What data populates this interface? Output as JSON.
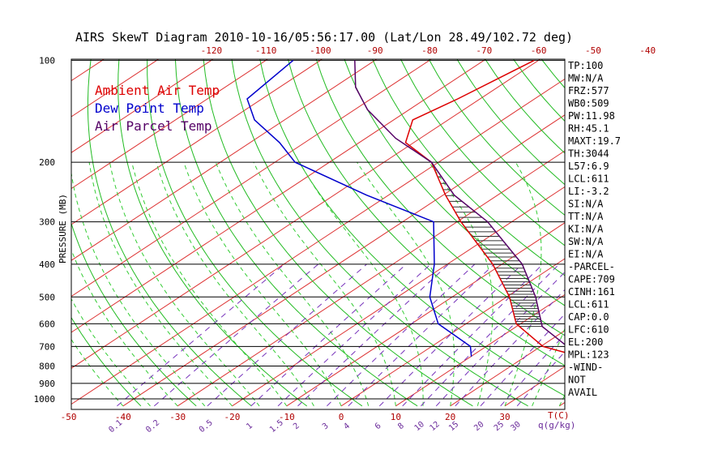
{
  "chart_data": {
    "type": "line",
    "title": "AIRS SkewT Diagram 2010-10-16/05:56:17.00 (Lat/Lon 28.49/102.72 deg)",
    "ylabel": "PRESSURE (MB)",
    "x_unit_label": "T(C)",
    "mix_unit_label": "q(g/kg)",
    "pressure_ticks": [
      100,
      200,
      300,
      400,
      500,
      600,
      700,
      800,
      900,
      1000
    ],
    "pressure_tick_labels": [
      "100",
      "200",
      "300",
      "400",
      "500",
      "600",
      "700",
      "800",
      "900",
      "1000"
    ],
    "bottom_temp_ticks": [
      -50,
      -40,
      -30,
      -20,
      -10,
      0,
      10,
      20,
      30
    ],
    "bottom_temp_labels": [
      "-50",
      "-40",
      "-30",
      "-20",
      "-10",
      "0",
      "10",
      "20",
      "30"
    ],
    "top_temp_ticks": [
      -120,
      -110,
      -100,
      -90,
      -80,
      -70,
      -60,
      -50,
      -40
    ],
    "top_temp_labels": [
      "-120",
      "-110",
      "-100",
      "-90",
      "-80",
      "-70",
      "-60",
      "-50",
      "-40"
    ],
    "mixing_ratio_ticks": [
      0.1,
      0.2,
      0.5,
      1,
      1.5,
      2,
      3,
      4,
      6,
      8,
      10,
      12,
      15,
      20,
      25,
      30
    ],
    "mixing_ratio_labels": [
      "0.1",
      "0.2",
      "0.5",
      "1",
      "1.5",
      "2",
      "3",
      "4",
      "6",
      "8",
      "10",
      "12",
      "15",
      "20",
      "25",
      "30"
    ],
    "legend": [
      {
        "label": "Ambient Air Temp",
        "color": "#dd0000"
      },
      {
        "label": "Dew Point Temp",
        "color": "#0000cc"
      },
      {
        "label": "Air Parcel Temp",
        "color": "#550066"
      }
    ],
    "series": [
      {
        "name": "Ambient Air Temp",
        "color": "#dd0000",
        "points": [
          [
            750,
            30.0
          ],
          [
            700,
            20.4
          ],
          [
            600,
            9.2
          ],
          [
            500,
            0.5
          ],
          [
            400,
            -11.7
          ],
          [
            300,
            -29.3
          ],
          [
            250,
            -39.6
          ],
          [
            200,
            -51.3
          ],
          [
            175,
            -61.5
          ],
          [
            150,
            -66.5
          ],
          [
            130,
            -64.1
          ],
          [
            100,
            -60.8
          ]
        ]
      },
      {
        "name": "Dew Point Temp",
        "color": "#0000cc",
        "points": [
          [
            750,
            10.1
          ],
          [
            700,
            7.1
          ],
          [
            600,
            -5.1
          ],
          [
            500,
            -14.1
          ],
          [
            400,
            -22.4
          ],
          [
            300,
            -34.3
          ],
          [
            250,
            -54.1
          ],
          [
            200,
            -76.3
          ],
          [
            175,
            -84.6
          ],
          [
            150,
            -95.5
          ],
          [
            130,
            -102.7
          ],
          [
            100,
            -105.0
          ]
        ]
      },
      {
        "name": "Air Parcel Temp",
        "color": "#550066",
        "points": [
          [
            750,
            30.0
          ],
          [
            611,
            14.7
          ],
          [
            500,
            5.3
          ],
          [
            400,
            -6.3
          ],
          [
            300,
            -24.4
          ],
          [
            250,
            -38.0
          ],
          [
            200,
            -51.3
          ],
          [
            170,
            -64.5
          ],
          [
            140,
            -77.6
          ],
          [
            120,
            -86.1
          ],
          [
            100,
            -93.7
          ]
        ]
      }
    ],
    "cape_shading_range_mb": [
      611,
      210
    ],
    "indices": [
      "TP:100",
      "MW:N/A",
      "FRZ:577",
      "WB0:509",
      "PW:11.98",
      "RH:45.1",
      "MAXT:19.7",
      "TH:3044",
      "L57:6.9",
      "LCL:611",
      "LI:-3.2",
      "SI:N/A",
      "TT:N/A",
      "KI:N/A",
      "SW:N/A",
      "EI:N/A",
      "-PARCEL-",
      "CAPE:709",
      "CINH:161",
      "LCL:611",
      "CAP:0.0",
      "LFC:610",
      "EL:200",
      "MPL:123",
      "-WIND-",
      "NOT",
      "AVAIL"
    ]
  }
}
